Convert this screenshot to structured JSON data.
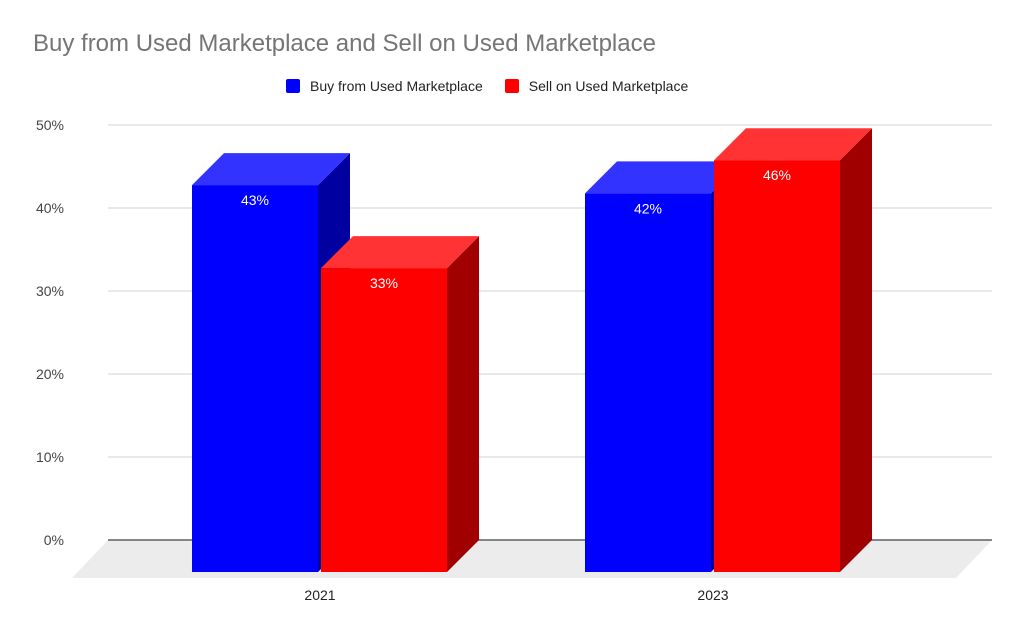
{
  "chart_data": {
    "type": "bar",
    "style": "3d-column",
    "title": "Buy from Used Marketplace and Sell on Used Marketplace",
    "xlabel": "",
    "ylabel": "",
    "categories": [
      "2021",
      "2023"
    ],
    "series": [
      {
        "name": "Buy from Used Marketplace",
        "color": "#0000ff",
        "values": [
          43,
          42
        ],
        "labels": [
          "43%",
          "42%"
        ]
      },
      {
        "name": "Sell on Used Marketplace",
        "color": "#ff0000",
        "values": [
          33,
          46
        ],
        "labels": [
          "33%",
          "46%"
        ]
      }
    ],
    "ylim": [
      0,
      50
    ],
    "yticks": [
      0,
      10,
      20,
      30,
      40,
      50
    ],
    "ytick_labels": [
      "0%",
      "10%",
      "20%",
      "30%",
      "40%",
      "50%"
    ],
    "grid": true,
    "legend_position": "top-center"
  }
}
